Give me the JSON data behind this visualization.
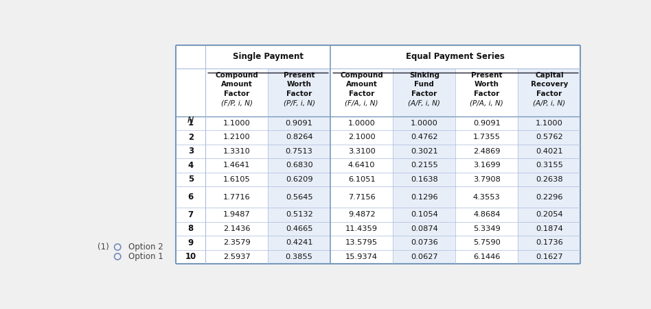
{
  "title_single": "Single Payment",
  "title_equal": "Equal Payment Series",
  "col_headers_line1": [
    "Compound",
    "Present",
    "Compound",
    "Sinking",
    "Present",
    "Capital"
  ],
  "col_headers_line2": [
    "Amount",
    "Worth",
    "Amount",
    "Fund",
    "Worth",
    "Recovery"
  ],
  "col_headers_line3": [
    "Factor",
    "Factor",
    "Factor",
    "Factor",
    "Factor",
    "Factor"
  ],
  "col_headers_line4": [
    "(F/P, i, N)",
    "(P/F, i, N)",
    "(F/A, i, N)",
    "(A/F, i, N)",
    "(P/A, i, N)",
    "(A/P, i, N)"
  ],
  "n_col_label": "N",
  "rows": [
    [
      1,
      1.1,
      0.9091,
      1.0,
      1.0,
      0.9091,
      1.1
    ],
    [
      2,
      1.21,
      0.8264,
      2.1,
      0.4762,
      1.7355,
      0.5762
    ],
    [
      3,
      1.331,
      0.7513,
      3.31,
      0.3021,
      2.4869,
      0.4021
    ],
    [
      4,
      1.4641,
      0.683,
      4.641,
      0.2155,
      3.1699,
      0.3155
    ],
    [
      5,
      1.6105,
      0.6209,
      6.1051,
      0.1638,
      3.7908,
      0.2638
    ],
    [
      6,
      1.7716,
      0.5645,
      7.7156,
      0.1296,
      4.3553,
      0.2296
    ],
    [
      7,
      1.9487,
      0.5132,
      9.4872,
      0.1054,
      4.8684,
      0.2054
    ],
    [
      8,
      2.1436,
      0.4665,
      11.4359,
      0.0874,
      5.3349,
      0.1874
    ],
    [
      9,
      2.3579,
      0.4241,
      13.5795,
      0.0736,
      5.759,
      0.1736
    ],
    [
      10,
      2.5937,
      0.3855,
      15.9374,
      0.0627,
      6.1446,
      0.1627
    ]
  ],
  "option_label": "(1)",
  "option2_text": "Option 2",
  "option1_text": "Option 1",
  "bg_color": "#f0f0f0",
  "table_bg": "#ffffff",
  "outer_border_color": "#7799bb",
  "inner_line_color": "#aabbdd",
  "divider_color": "#7799bb",
  "text_color": "#111111",
  "radio_color": "#7788bb"
}
